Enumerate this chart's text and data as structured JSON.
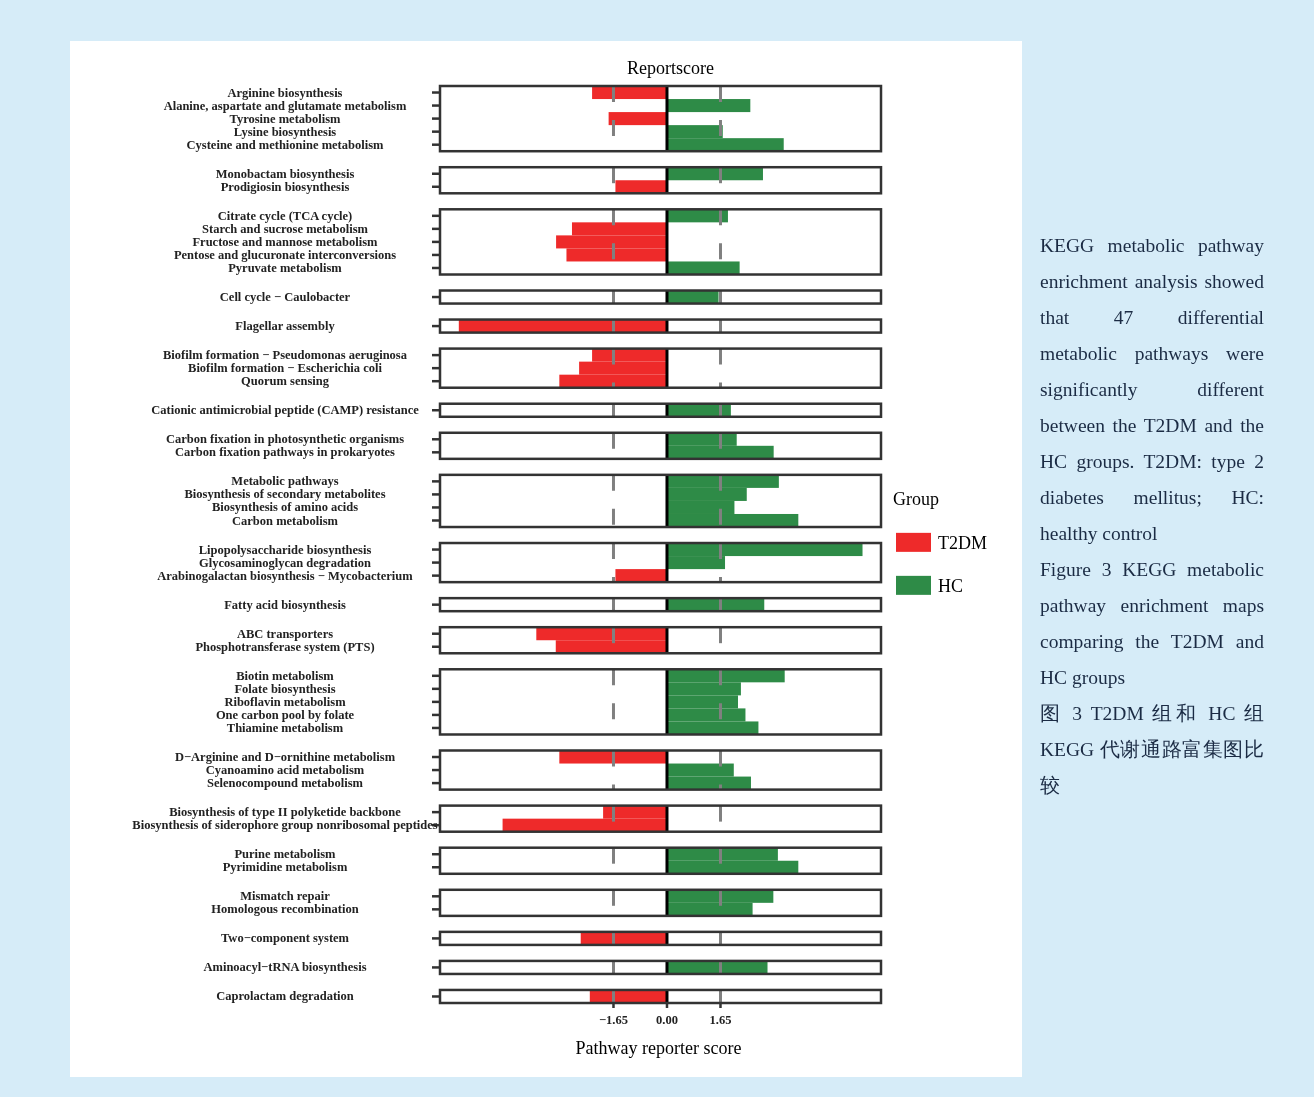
{
  "chart_data": [
    {
      "type": "bar",
      "orientation": "horizontal",
      "title": "Reportscore",
      "categories": [
        "Arginine biosynthesis",
        "Alanine, aspartate and glutamate metabolism",
        "Tyrosine metabolism",
        "Lysine biosynthesis",
        "Cysteine and methionine metabolism"
      ],
      "series": [
        {
          "color": "#ee2a2a",
          "values": [
            -2.31,
            null,
            -1.8,
            null,
            null
          ]
        },
        {
          "color": "#2e8b47",
          "values": [
            null,
            2.57,
            null,
            1.72,
            3.6
          ]
        }
      ],
      "xlim": [
        -7.0,
        6.6
      ],
      "tick_labels": "y",
      "ref_lines": [
        {
          "axis": "x",
          "value": -1.65,
          "color": "#808080",
          "line_style": "dashed"
        },
        {
          "axis": "x",
          "value": 1.65,
          "color": "#808080",
          "line_style": "dashed"
        },
        {
          "axis": "x",
          "value": 0,
          "color": "#000000",
          "line_style": "solid"
        }
      ]
    },
    {
      "type": "bar",
      "orientation": "horizontal",
      "categories": [
        "Monobactam biosynthesis",
        "Prodigiosin biosynthesis"
      ],
      "series": [
        {
          "color": "#ee2a2a",
          "values": [
            null,
            -1.59
          ]
        },
        {
          "color": "#2e8b47",
          "values": [
            2.96,
            null
          ]
        }
      ],
      "xlim": [
        -7.0,
        6.6
      ],
      "tick_labels": "y",
      "ref_lines": [
        {
          "axis": "x",
          "value": -1.65,
          "color": "#808080",
          "line_style": "dashed"
        },
        {
          "axis": "x",
          "value": 1.65,
          "color": "#808080",
          "line_style": "dashed"
        },
        {
          "axis": "x",
          "value": 0,
          "color": "#000000",
          "line_style": "solid"
        }
      ]
    },
    {
      "type": "bar",
      "orientation": "horizontal",
      "categories": [
        "Citrate cycle (TCA cycle)",
        "Starch and sucrose metabolism",
        "Fructose and mannose metabolism",
        "Pentose and glucuronate interconversions",
        "Pyruvate metabolism"
      ],
      "series": [
        {
          "color": "#ee2a2a",
          "values": [
            null,
            -2.93,
            -3.42,
            -3.1,
            null
          ]
        },
        {
          "color": "#2e8b47",
          "values": [
            1.88,
            null,
            null,
            null,
            2.24
          ]
        }
      ],
      "xlim": [
        -7.0,
        6.6
      ],
      "tick_labels": "y",
      "ref_lines": [
        {
          "axis": "x",
          "value": -1.65,
          "color": "#808080",
          "line_style": "dashed"
        },
        {
          "axis": "x",
          "value": 1.65,
          "color": "#808080",
          "line_style": "dashed"
        },
        {
          "axis": "x",
          "value": 0,
          "color": "#000000",
          "line_style": "solid"
        }
      ]
    },
    {
      "type": "bar",
      "orientation": "horizontal",
      "categories": [
        "Cell cycle − Caulobacter"
      ],
      "series": [
        {
          "color": "#ee2a2a",
          "values": [
            null
          ]
        },
        {
          "color": "#2e8b47",
          "values": [
            1.59
          ]
        }
      ],
      "xlim": [
        -7.0,
        6.6
      ],
      "tick_labels": "y",
      "ref_lines": [
        {
          "axis": "x",
          "value": -1.65,
          "color": "#808080",
          "line_style": "dashed"
        },
        {
          "axis": "x",
          "value": 1.65,
          "color": "#808080",
          "line_style": "dashed"
        },
        {
          "axis": "x",
          "value": 0,
          "color": "#000000",
          "line_style": "solid"
        }
      ]
    },
    {
      "type": "bar",
      "orientation": "horizontal",
      "categories": [
        "Flagellar assembly"
      ],
      "series": [
        {
          "color": "#ee2a2a",
          "values": [
            -6.42
          ]
        },
        {
          "color": "#2e8b47",
          "values": [
            null
          ]
        }
      ],
      "xlim": [
        -7.0,
        6.6
      ],
      "tick_labels": "y",
      "ref_lines": [
        {
          "axis": "x",
          "value": -1.65,
          "color": "#808080",
          "line_style": "dashed"
        },
        {
          "axis": "x",
          "value": 1.65,
          "color": "#808080",
          "line_style": "dashed"
        },
        {
          "axis": "x",
          "value": 0,
          "color": "#000000",
          "line_style": "solid"
        }
      ]
    },
    {
      "type": "bar",
      "orientation": "horizontal",
      "categories": [
        "Biofilm formation − Pseudomonas aeruginosa",
        "Biofilm formation − Escherichia coli",
        "Quorum sensing"
      ],
      "series": [
        {
          "color": "#ee2a2a",
          "values": [
            -2.31,
            -2.71,
            -3.32
          ]
        },
        {
          "color": "#2e8b47",
          "values": [
            null,
            null,
            null
          ]
        }
      ],
      "xlim": [
        -7.0,
        6.6
      ],
      "tick_labels": "y",
      "ref_lines": [
        {
          "axis": "x",
          "value": -1.65,
          "color": "#808080",
          "line_style": "dashed"
        },
        {
          "axis": "x",
          "value": 1.65,
          "color": "#808080",
          "line_style": "dashed"
        },
        {
          "axis": "x",
          "value": 0,
          "color": "#000000",
          "line_style": "solid"
        }
      ]
    },
    {
      "type": "bar",
      "orientation": "horizontal",
      "categories": [
        "Cationic antimicrobial peptide (CAMP) resistance"
      ],
      "series": [
        {
          "color": "#ee2a2a",
          "values": [
            null
          ]
        },
        {
          "color": "#2e8b47",
          "values": [
            1.97
          ]
        }
      ],
      "xlim": [
        -7.0,
        6.6
      ],
      "tick_labels": "y",
      "ref_lines": [
        {
          "axis": "x",
          "value": -1.65,
          "color": "#808080",
          "line_style": "dashed"
        },
        {
          "axis": "x",
          "value": 1.65,
          "color": "#808080",
          "line_style": "dashed"
        },
        {
          "axis": "x",
          "value": 0,
          "color": "#000000",
          "line_style": "solid"
        }
      ]
    },
    {
      "type": "bar",
      "orientation": "horizontal",
      "categories": [
        "Carbon fixation in photosynthetic organisms",
        "Carbon fixation pathways in prokaryotes"
      ],
      "series": [
        {
          "color": "#ee2a2a",
          "values": [
            null,
            null
          ]
        },
        {
          "color": "#2e8b47",
          "values": [
            2.15,
            3.29
          ]
        }
      ],
      "xlim": [
        -7.0,
        6.6
      ],
      "tick_labels": "y",
      "ref_lines": [
        {
          "axis": "x",
          "value": -1.65,
          "color": "#808080",
          "line_style": "dashed"
        },
        {
          "axis": "x",
          "value": 1.65,
          "color": "#808080",
          "line_style": "dashed"
        },
        {
          "axis": "x",
          "value": 0,
          "color": "#000000",
          "line_style": "solid"
        }
      ]
    },
    {
      "type": "bar",
      "orientation": "horizontal",
      "categories": [
        "Metabolic pathways",
        "Biosynthesis of secondary metabolites",
        "Biosynthesis of amino acids",
        "Carbon metabolism"
      ],
      "series": [
        {
          "name": "T2DM",
          "color": "#ee2a2a",
          "values": [
            null,
            null,
            null,
            null
          ]
        },
        {
          "name": "HC",
          "color": "#2e8b47",
          "values": [
            3.45,
            2.46,
            2.08,
            4.05
          ]
        }
      ],
      "xlim": [
        -7.0,
        6.6
      ],
      "tick_labels": "y",
      "legend": "right",
      "legend_title": "Group",
      "ref_lines": [
        {
          "axis": "x",
          "value": -1.65,
          "color": "#808080",
          "line_style": "dashed"
        },
        {
          "axis": "x",
          "value": 1.65,
          "color": "#808080",
          "line_style": "dashed"
        },
        {
          "axis": "x",
          "value": 0,
          "color": "#000000",
          "line_style": "solid"
        }
      ]
    },
    {
      "type": "bar",
      "orientation": "horizontal",
      "categories": [
        "Lipopolysaccharide biosynthesis",
        "Glycosaminoglycan degradation",
        "Arabinogalactan biosynthesis − Mycobacterium"
      ],
      "series": [
        {
          "color": "#ee2a2a",
          "values": [
            null,
            null,
            -1.59
          ]
        },
        {
          "color": "#2e8b47",
          "values": [
            6.03,
            1.79,
            null
          ]
        }
      ],
      "xlim": [
        -7.0,
        6.6
      ],
      "tick_labels": "y",
      "ref_lines": [
        {
          "axis": "x",
          "value": -1.65,
          "color": "#808080",
          "line_style": "dashed"
        },
        {
          "axis": "x",
          "value": 1.65,
          "color": "#808080",
          "line_style": "dashed"
        },
        {
          "axis": "x",
          "value": 0,
          "color": "#000000",
          "line_style": "solid"
        }
      ]
    },
    {
      "type": "bar",
      "orientation": "horizontal",
      "categories": [
        "Fatty acid biosynthesis"
      ],
      "series": [
        {
          "color": "#ee2a2a",
          "values": [
            null
          ]
        },
        {
          "color": "#2e8b47",
          "values": [
            3.0
          ]
        }
      ],
      "xlim": [
        -7.0,
        6.6
      ],
      "tick_labels": "y",
      "ref_lines": [
        {
          "axis": "x",
          "value": -1.65,
          "color": "#808080",
          "line_style": "dashed"
        },
        {
          "axis": "x",
          "value": 1.65,
          "color": "#808080",
          "line_style": "dashed"
        },
        {
          "axis": "x",
          "value": 0,
          "color": "#000000",
          "line_style": "solid"
        }
      ]
    },
    {
      "type": "bar",
      "orientation": "horizontal",
      "categories": [
        "ABC transporters",
        "Phosphotransferase system (PTS)"
      ],
      "series": [
        {
          "color": "#ee2a2a",
          "values": [
            -4.03,
            -3.43
          ]
        },
        {
          "color": "#2e8b47",
          "values": [
            null,
            null
          ]
        }
      ],
      "xlim": [
        -7.0,
        6.6
      ],
      "tick_labels": "y",
      "ref_lines": [
        {
          "axis": "x",
          "value": -1.65,
          "color": "#808080",
          "line_style": "dashed"
        },
        {
          "axis": "x",
          "value": 1.65,
          "color": "#808080",
          "line_style": "dashed"
        },
        {
          "axis": "x",
          "value": 0,
          "color": "#000000",
          "line_style": "solid"
        }
      ]
    },
    {
      "type": "bar",
      "orientation": "horizontal",
      "categories": [
        "Biotin metabolism",
        "Folate biosynthesis",
        "Riboflavin metabolism",
        "One carbon pool by folate",
        "Thiamine metabolism"
      ],
      "series": [
        {
          "color": "#ee2a2a",
          "values": [
            null,
            null,
            null,
            null,
            null
          ]
        },
        {
          "color": "#2e8b47",
          "values": [
            3.63,
            2.28,
            2.19,
            2.42,
            2.82
          ]
        }
      ],
      "xlim": [
        -7.0,
        6.6
      ],
      "tick_labels": "y",
      "ref_lines": [
        {
          "axis": "x",
          "value": -1.65,
          "color": "#808080",
          "line_style": "dashed"
        },
        {
          "axis": "x",
          "value": 1.65,
          "color": "#808080",
          "line_style": "dashed"
        },
        {
          "axis": "x",
          "value": 0,
          "color": "#000000",
          "line_style": "solid"
        }
      ]
    },
    {
      "type": "bar",
      "orientation": "horizontal",
      "categories": [
        "D−Arginine and D−ornithine metabolism",
        "Cyanoamino acid metabolism",
        "Selenocompound metabolism"
      ],
      "series": [
        {
          "color": "#ee2a2a",
          "values": [
            -3.32,
            null,
            null
          ]
        },
        {
          "color": "#2e8b47",
          "values": [
            null,
            2.06,
            2.59
          ]
        }
      ],
      "xlim": [
        -7.0,
        6.6
      ],
      "tick_labels": "y",
      "ref_lines": [
        {
          "axis": "x",
          "value": -1.65,
          "color": "#808080",
          "line_style": "dashed"
        },
        {
          "axis": "x",
          "value": 1.65,
          "color": "#808080",
          "line_style": "dashed"
        },
        {
          "axis": "x",
          "value": 0,
          "color": "#000000",
          "line_style": "solid"
        }
      ]
    },
    {
      "type": "bar",
      "orientation": "horizontal",
      "categories": [
        "Biosynthesis of type II polyketide backbone",
        "Biosynthesis of siderophore group nonribosomal peptides"
      ],
      "series": [
        {
          "color": "#ee2a2a",
          "values": [
            -1.97,
            -5.07
          ]
        },
        {
          "color": "#2e8b47",
          "values": [
            null,
            null
          ]
        }
      ],
      "xlim": [
        -7.0,
        6.6
      ],
      "tick_labels": "y",
      "ref_lines": [
        {
          "axis": "x",
          "value": -1.65,
          "color": "#808080",
          "line_style": "dashed"
        },
        {
          "axis": "x",
          "value": 1.65,
          "color": "#808080",
          "line_style": "dashed"
        },
        {
          "axis": "x",
          "value": 0,
          "color": "#000000",
          "line_style": "solid"
        }
      ]
    },
    {
      "type": "bar",
      "orientation": "horizontal",
      "categories": [
        "Purine metabolism",
        "Pyrimidine metabolism"
      ],
      "series": [
        {
          "color": "#ee2a2a",
          "values": [
            null,
            null
          ]
        },
        {
          "color": "#2e8b47",
          "values": [
            3.42,
            4.05
          ]
        }
      ],
      "xlim": [
        -7.0,
        6.6
      ],
      "tick_labels": "y",
      "ref_lines": [
        {
          "axis": "x",
          "value": -1.65,
          "color": "#808080",
          "line_style": "dashed"
        },
        {
          "axis": "x",
          "value": 1.65,
          "color": "#808080",
          "line_style": "dashed"
        },
        {
          "axis": "x",
          "value": 0,
          "color": "#000000",
          "line_style": "solid"
        }
      ]
    },
    {
      "type": "bar",
      "orientation": "horizontal",
      "categories": [
        "Mismatch repair",
        "Homologous recombination"
      ],
      "series": [
        {
          "color": "#ee2a2a",
          "values": [
            null,
            null
          ]
        },
        {
          "color": "#2e8b47",
          "values": [
            3.28,
            2.64
          ]
        }
      ],
      "xlim": [
        -7.0,
        6.6
      ],
      "tick_labels": "y",
      "ref_lines": [
        {
          "axis": "x",
          "value": -1.65,
          "color": "#808080",
          "line_style": "dashed"
        },
        {
          "axis": "x",
          "value": 1.65,
          "color": "#808080",
          "line_style": "dashed"
        },
        {
          "axis": "x",
          "value": 0,
          "color": "#000000",
          "line_style": "solid"
        }
      ]
    },
    {
      "type": "bar",
      "orientation": "horizontal",
      "categories": [
        "Two−component system"
      ],
      "series": [
        {
          "color": "#ee2a2a",
          "values": [
            -2.66
          ]
        },
        {
          "color": "#2e8b47",
          "values": [
            null
          ]
        }
      ],
      "xlim": [
        -7.0,
        6.6
      ],
      "tick_labels": "y",
      "ref_lines": [
        {
          "axis": "x",
          "value": -1.65,
          "color": "#808080",
          "line_style": "dashed"
        },
        {
          "axis": "x",
          "value": 1.65,
          "color": "#808080",
          "line_style": "dashed"
        },
        {
          "axis": "x",
          "value": 0,
          "color": "#000000",
          "line_style": "solid"
        }
      ]
    },
    {
      "type": "bar",
      "orientation": "horizontal",
      "categories": [
        "Aminoacyl−tRNA biosynthesis"
      ],
      "series": [
        {
          "color": "#ee2a2a",
          "values": [
            null
          ]
        },
        {
          "color": "#2e8b47",
          "values": [
            3.1
          ]
        }
      ],
      "xlim": [
        -7.0,
        6.6
      ],
      "tick_labels": "y",
      "ref_lines": [
        {
          "axis": "x",
          "value": -1.65,
          "color": "#808080",
          "line_style": "dashed"
        },
        {
          "axis": "x",
          "value": 1.65,
          "color": "#808080",
          "line_style": "dashed"
        },
        {
          "axis": "x",
          "value": 0,
          "color": "#000000",
          "line_style": "solid"
        }
      ]
    },
    {
      "type": "bar",
      "orientation": "horizontal",
      "categories": [
        "Caprolactam degradation"
      ],
      "series": [
        {
          "color": "#ee2a2a",
          "values": [
            -2.38
          ]
        },
        {
          "color": "#2e8b47",
          "values": [
            null
          ]
        }
      ],
      "xlim": [
        -7.0,
        6.6
      ],
      "xticks": [
        -1.65,
        {
          "value": 0,
          "label": "0.00"
        },
        1.65
      ],
      "xlabel": "Pathway reporter score",
      "ref_lines": [
        {
          "axis": "x",
          "value": -1.65,
          "color": "#808080",
          "line_style": "dashed"
        },
        {
          "axis": "x",
          "value": 1.65,
          "color": "#808080",
          "line_style": "dashed"
        },
        {
          "axis": "x",
          "value": 0,
          "color": "#000000",
          "line_style": "solid"
        }
      ]
    },
    {
      "type": "other",
      "annotations": [
        "KEGG metabolic pathway enrichment analysis showed that 47 differential metabolic pathways were significantly different between the T2DM and the HC groups. T2DM: type 2 diabetes mellitus; HC: healthy control",
        "Figure 3 KEGG metabolic pathway enrichment maps comparing the T2DM and HC groups",
        "图 3 T2DM 组和 HC 组 KEGG 代谢通路富集图比较"
      ]
    }
  ]
}
